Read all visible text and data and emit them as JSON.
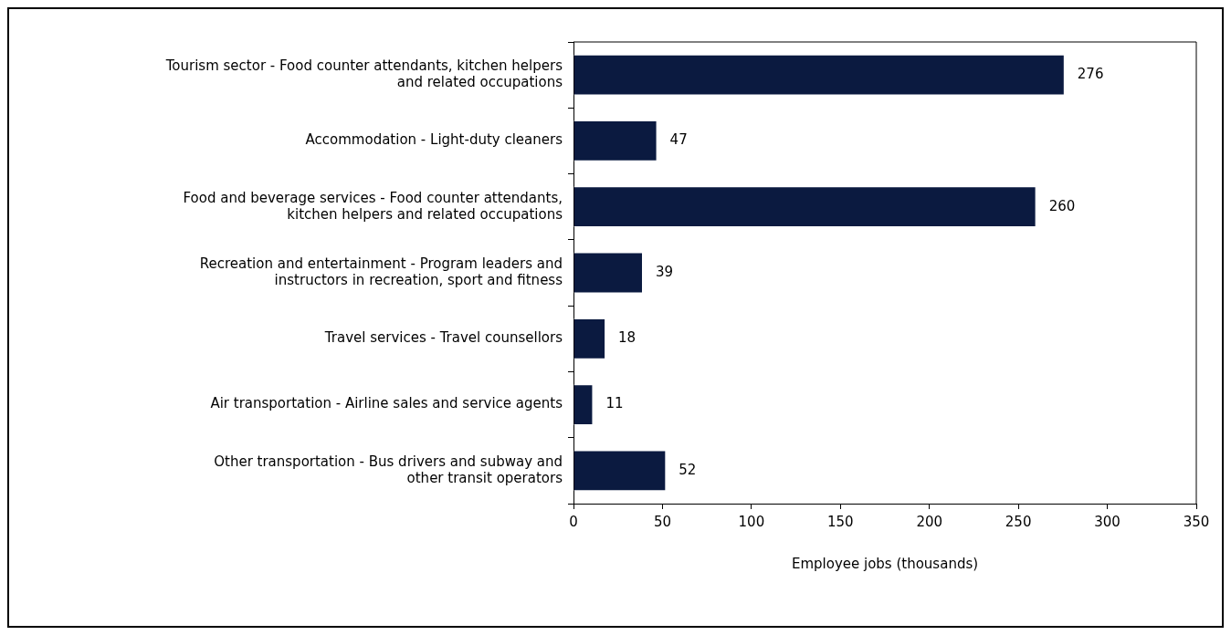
{
  "chart_data": {
    "type": "bar",
    "orientation": "horizontal",
    "categories": [
      "Tourism sector - Food counter attendants, kitchen helpers\nand related occupations",
      "Accommodation - Light-duty cleaners",
      "Food and beverage services - Food counter attendants,\nkitchen helpers and related occupations",
      "Recreation and entertainment - Program leaders and\ninstructors in recreation, sport and fitness",
      "Travel services - Travel counsellors",
      "Air transportation - Airline sales and service agents",
      "Other transportation - Bus drivers and subway and\nother transit operators"
    ],
    "values": [
      276,
      47,
      260,
      39,
      18,
      11,
      52
    ],
    "color": "#0b1a40",
    "xlabel": "Employee jobs (thousands)",
    "xlim": [
      0,
      350
    ],
    "xticks": [
      0,
      50,
      100,
      150,
      200,
      250,
      300,
      350
    ],
    "data_labels": true,
    "legend": false
  }
}
